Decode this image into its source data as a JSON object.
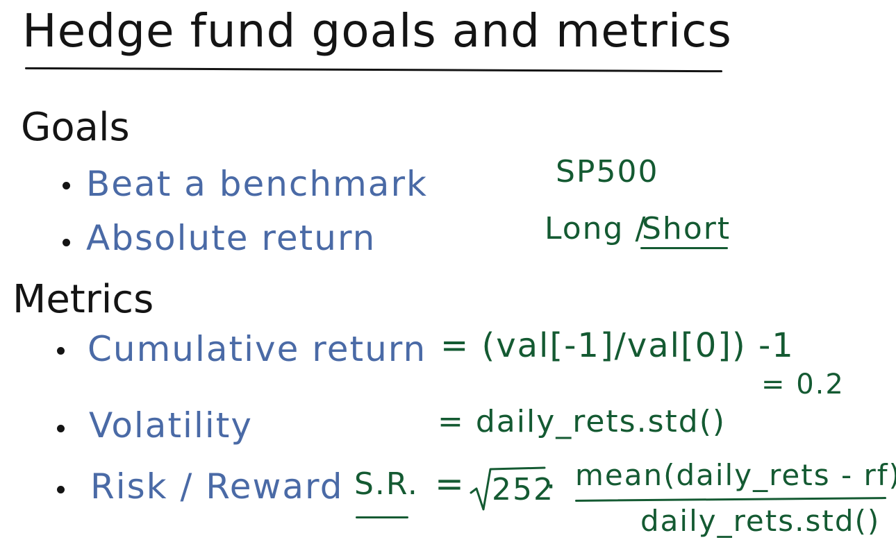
{
  "title": "Hedge fund goals and metrics",
  "goals": {
    "heading": "Goals",
    "items": [
      {
        "label": "Beat a benchmark",
        "note": "SP500"
      },
      {
        "label": "Absolute return",
        "note_left": "Long /",
        "note_right": "Short"
      }
    ]
  },
  "metrics": {
    "heading": "Metrics",
    "cumulative": {
      "label": "Cumulative return",
      "formula": "= (val[-1]/val[0]) -1",
      "result": "= 0.2"
    },
    "volatility": {
      "label": "Volatility",
      "formula": "= daily_rets.std()"
    },
    "risk_reward": {
      "label": "Risk / Reward",
      "abbr": "S.R.",
      "equals": "=",
      "sqrt_value": "252",
      "dot": "·",
      "numerator": "mean(daily_rets - rf)",
      "denominator": "daily_rets.std()"
    }
  },
  "colors": {
    "ink_black": "#141414",
    "ink_blue": "#4a6aa6",
    "ink_green": "#145a32",
    "background": "#ffffff"
  }
}
